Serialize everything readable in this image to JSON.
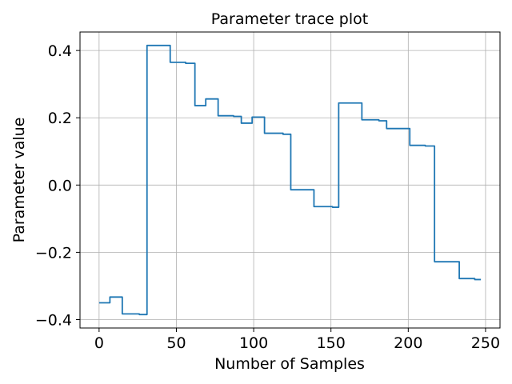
{
  "chart_data": {
    "type": "line",
    "title": "Parameter trace plot",
    "xlabel": "Number of Samples",
    "ylabel": "Parameter value",
    "xlim": [
      -12.35,
      259.35
    ],
    "ylim": [
      -0.425,
      0.455
    ],
    "xticks": [
      0,
      50,
      100,
      150,
      200,
      250
    ],
    "xtick_labels": [
      "0",
      "50",
      "100",
      "150",
      "200",
      "250"
    ],
    "yticks": [
      -0.4,
      -0.2,
      0.0,
      0.2,
      0.4
    ],
    "ytick_labels": [
      "−0.4",
      "−0.2",
      "0.0",
      "0.2",
      "0.4"
    ],
    "grid": true,
    "series": [
      {
        "color": "#1f77b4",
        "steps": [
          [
            0,
            -0.35
          ],
          [
            7,
            -0.333
          ],
          [
            15,
            -0.383
          ],
          [
            26,
            -0.385
          ],
          [
            31,
            0.415
          ],
          [
            46,
            0.365
          ],
          [
            56,
            0.362
          ],
          [
            62,
            0.236
          ],
          [
            69,
            0.256
          ],
          [
            77,
            0.206
          ],
          [
            87,
            0.204
          ],
          [
            92,
            0.184
          ],
          [
            99,
            0.202
          ],
          [
            107,
            0.154
          ],
          [
            119,
            0.151
          ],
          [
            124,
            -0.014
          ],
          [
            139,
            -0.064
          ],
          [
            151,
            -0.066
          ],
          [
            155,
            0.244
          ],
          [
            170,
            0.194
          ],
          [
            181,
            0.191
          ],
          [
            186,
            0.168
          ],
          [
            201,
            0.118
          ],
          [
            211,
            0.116
          ],
          [
            217,
            -0.228
          ],
          [
            233,
            -0.278
          ],
          [
            243,
            -0.281
          ],
          [
            247,
            -0.281
          ]
        ]
      }
    ]
  }
}
